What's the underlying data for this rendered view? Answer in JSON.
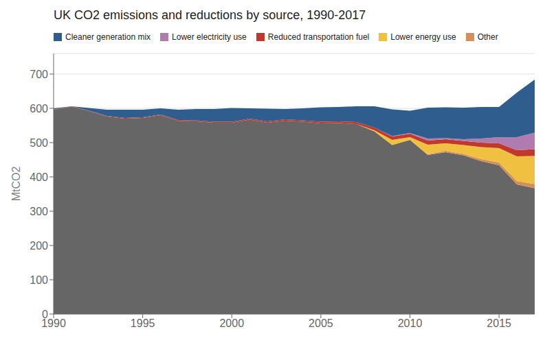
{
  "chart_data": {
    "type": "area",
    "title": "UK CO2 emissions and reductions by source, 1990-2017",
    "ylabel": "MtCO2",
    "x": [
      1990,
      1991,
      1992,
      1993,
      1994,
      1995,
      1996,
      1997,
      1998,
      1999,
      2000,
      2001,
      2002,
      2003,
      2004,
      2005,
      2006,
      2007,
      2008,
      2009,
      2010,
      2011,
      2012,
      2013,
      2014,
      2015,
      2016,
      2017
    ],
    "series": [
      {
        "color": "#666666",
        "values": [
          596,
          605,
          592,
          576,
          570,
          572,
          580,
          563,
          562,
          558,
          558,
          567,
          558,
          564,
          561,
          556,
          557,
          554,
          533,
          493,
          508,
          464,
          472,
          463,
          446,
          434,
          378,
          367
        ]
      },
      {
        "name": "Other",
        "color": "#d4905a",
        "values": [
          0,
          0,
          0,
          0,
          0,
          0,
          0,
          0,
          0,
          0,
          0,
          0,
          0,
          0,
          0,
          0,
          0,
          0,
          0,
          0,
          0,
          2,
          4,
          4,
          6,
          8,
          10,
          12
        ]
      },
      {
        "name": "Lower energy use",
        "color": "#f0c040",
        "values": [
          0,
          0,
          0,
          0,
          0,
          0,
          0,
          0,
          0,
          0,
          0,
          0,
          0,
          0,
          0,
          0,
          0,
          0,
          3,
          15,
          8,
          28,
          22,
          26,
          35,
          42,
          72,
          82
        ]
      },
      {
        "name": "Reduced transportation fuel",
        "color": "#c0392b",
        "values": [
          1,
          1,
          1,
          2,
          2,
          2,
          2,
          3,
          3,
          3,
          3,
          3,
          4,
          4,
          4,
          5,
          5,
          6,
          8,
          10,
          10,
          12,
          12,
          12,
          13,
          14,
          18,
          20
        ]
      },
      {
        "name": "Lower electricity use",
        "color": "#b07cb0",
        "values": [
          0,
          0,
          0,
          0,
          0,
          0,
          0,
          0,
          0,
          0,
          0,
          0,
          0,
          0,
          0,
          0,
          0,
          0,
          0,
          1,
          2,
          6,
          3,
          5,
          12,
          18,
          38,
          48
        ]
      },
      {
        "name": "Cleaner generation mix",
        "color": "#2e5d8e",
        "values": [
          3,
          0,
          8,
          18,
          24,
          22,
          18,
          30,
          33,
          37,
          40,
          30,
          37,
          30,
          35,
          42,
          42,
          46,
          62,
          78,
          65,
          90,
          90,
          92,
          92,
          88,
          130,
          155
        ]
      }
    ],
    "stacked": true,
    "xlim": [
      1990,
      2017
    ],
    "xticks": [
      1990,
      1995,
      2000,
      2005,
      2010,
      2015
    ],
    "ylim": [
      0,
      760
    ],
    "yticks": [
      0,
      100,
      200,
      300,
      400,
      500,
      600,
      700
    ],
    "grid": true,
    "legend": "top"
  }
}
